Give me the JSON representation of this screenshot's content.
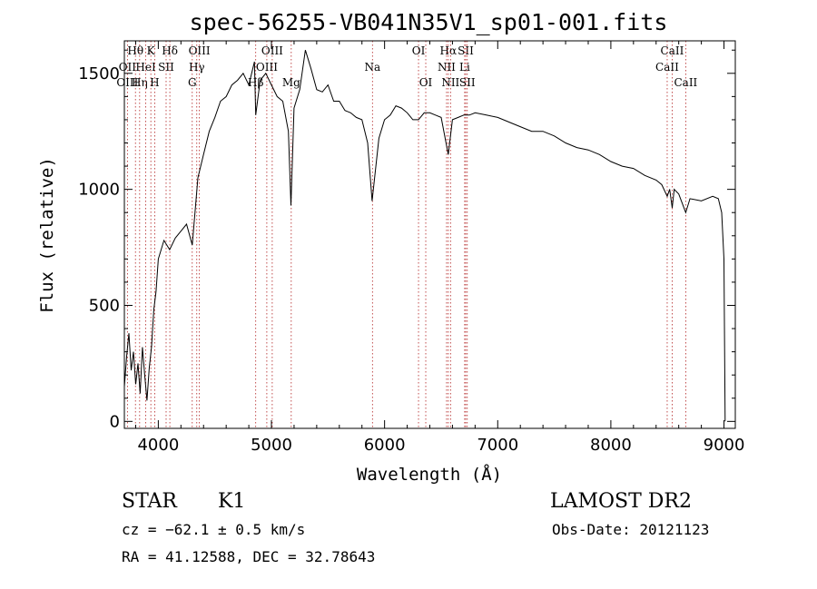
{
  "chart_data": {
    "type": "line",
    "title": "spec-56255-VB041N35V1_sp01-001.fits",
    "xlabel": "Wavelength (Å)",
    "ylabel": "Flux (relative)",
    "xlim": [
      3700,
      9100
    ],
    "ylim": [
      -30,
      1640
    ],
    "xticks": [
      4000,
      5000,
      6000,
      7000,
      8000,
      9000
    ],
    "yticks": [
      0,
      500,
      1000,
      1500
    ],
    "grid": false,
    "series": [
      {
        "x": [
          3700,
          3720,
          3740,
          3760,
          3780,
          3800,
          3820,
          3840,
          3860,
          3880,
          3900,
          3920,
          3940,
          3960,
          3980,
          4000,
          4050,
          4100,
          4150,
          4200,
          4250,
          4300,
          4350,
          4400,
          4450,
          4500,
          4550,
          4600,
          4650,
          4700,
          4750,
          4800,
          4850,
          4861,
          4900,
          4950,
          5000,
          5050,
          5100,
          5150,
          5172,
          5200,
          5250,
          5300,
          5350,
          5400,
          5450,
          5500,
          5550,
          5600,
          5650,
          5700,
          5750,
          5800,
          5850,
          5890,
          5950,
          6000,
          6050,
          6100,
          6150,
          6200,
          6250,
          6300,
          6350,
          6400,
          6450,
          6500,
          6563,
          6600,
          6650,
          6700,
          6750,
          6800,
          6900,
          7000,
          7100,
          7200,
          7300,
          7400,
          7500,
          7600,
          7700,
          7800,
          7900,
          8000,
          8100,
          8200,
          8300,
          8400,
          8450,
          8498,
          8520,
          8542,
          8560,
          8600,
          8662,
          8700,
          8800,
          8900,
          8950,
          8980,
          9000,
          9010
        ],
        "values": [
          150,
          280,
          380,
          220,
          300,
          160,
          250,
          120,
          320,
          200,
          90,
          230,
          320,
          480,
          560,
          700,
          780,
          740,
          790,
          820,
          850,
          760,
          1050,
          1150,
          1250,
          1310,
          1380,
          1400,
          1450,
          1470,
          1500,
          1450,
          1550,
          1320,
          1470,
          1500,
          1450,
          1400,
          1380,
          1250,
          930,
          1350,
          1430,
          1600,
          1520,
          1430,
          1420,
          1450,
          1380,
          1380,
          1340,
          1330,
          1310,
          1300,
          1200,
          950,
          1220,
          1300,
          1320,
          1360,
          1350,
          1330,
          1300,
          1300,
          1330,
          1330,
          1320,
          1310,
          1150,
          1300,
          1310,
          1320,
          1320,
          1330,
          1320,
          1310,
          1290,
          1270,
          1250,
          1250,
          1230,
          1200,
          1180,
          1170,
          1150,
          1120,
          1100,
          1090,
          1060,
          1040,
          1020,
          970,
          1000,
          920,
          1000,
          980,
          900,
          960,
          950,
          970,
          960,
          900,
          700,
          0
        ]
      }
    ],
    "lines": [
      {
        "label": "Hθ",
        "x": 3798,
        "row": 0
      },
      {
        "label": "OII",
        "x": 3727,
        "row": 1
      },
      {
        "label": "OIII",
        "x": 3727,
        "row": 2
      },
      {
        "label": "Hη",
        "x": 3835,
        "row": 2
      },
      {
        "label": "HeI",
        "x": 3889,
        "row": 1
      },
      {
        "label": "K",
        "x": 3934,
        "row": 0
      },
      {
        "label": "H",
        "x": 3968,
        "row": 2
      },
      {
        "label": "SII",
        "x": 4069,
        "row": 1
      },
      {
        "label": "Hδ",
        "x": 4102,
        "row": 0
      },
      {
        "label": "OIII",
        "x": 4363,
        "row": 0
      },
      {
        "label": "Hγ",
        "x": 4340,
        "row": 1
      },
      {
        "label": "G",
        "x": 4300,
        "row": 2
      },
      {
        "label": "Hβ",
        "x": 4861,
        "row": 2
      },
      {
        "label": "OIII",
        "x": 5007,
        "row": 0
      },
      {
        "label": "OIII",
        "x": 4959,
        "row": 1
      },
      {
        "label": "Mg",
        "x": 5175,
        "row": 2
      },
      {
        "label": "Na",
        "x": 5893,
        "row": 1
      },
      {
        "label": "OI",
        "x": 6300,
        "row": 0
      },
      {
        "label": "OI",
        "x": 6364,
        "row": 2
      },
      {
        "label": "Hα",
        "x": 6563,
        "row": 0
      },
      {
        "label": "NII",
        "x": 6548,
        "row": 1
      },
      {
        "label": "NII",
        "x": 6583,
        "row": 2
      },
      {
        "label": "SII",
        "x": 6717,
        "row": 0
      },
      {
        "label": "Li",
        "x": 6708,
        "row": 1
      },
      {
        "label": "SII",
        "x": 6731,
        "row": 2
      },
      {
        "label": "CaII",
        "x": 8542,
        "row": 0
      },
      {
        "label": "CaII",
        "x": 8498,
        "row": 1
      },
      {
        "label": "CaII",
        "x": 8662,
        "row": 2
      }
    ]
  },
  "info": {
    "object_class": "STAR",
    "subclass": "K1",
    "survey": "LAMOST DR2",
    "cz": "cz = −62.1 ± 0.5 km/s",
    "obs_date": "Obs-Date: 20121123",
    "coords": "RA =  41.12588, DEC =  32.78643"
  }
}
